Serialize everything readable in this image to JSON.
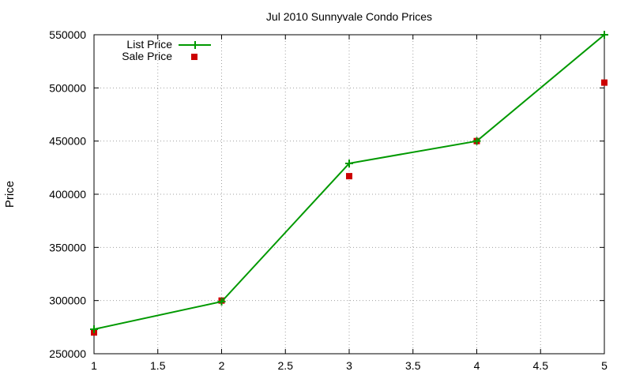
{
  "chart_data": {
    "type": "line",
    "title": "Jul 2010 Sunnyvale Condo Prices",
    "xlabel": "",
    "ylabel": "Price",
    "xlim": [
      1,
      5
    ],
    "ylim": [
      250000,
      550000
    ],
    "xticks": [
      1,
      1.5,
      2,
      2.5,
      3,
      3.5,
      4,
      4.5,
      5
    ],
    "xtick_labels": [
      "1",
      "1.5",
      "2",
      "2.5",
      "3",
      "3.5",
      "4",
      "4.5",
      "5"
    ],
    "yticks": [
      250000,
      300000,
      350000,
      400000,
      450000,
      500000,
      550000
    ],
    "ytick_labels": [
      "250000",
      "300000",
      "350000",
      "400000",
      "450000",
      "500000",
      "550000"
    ],
    "grid": true,
    "legend_position": "top-left",
    "series": [
      {
        "name": "List Price",
        "style": "line-with-plus-markers",
        "color": "#009900",
        "x": [
          1,
          2,
          3,
          4,
          5
        ],
        "y": [
          273000,
          299000,
          429000,
          450000,
          550000
        ]
      },
      {
        "name": "Sale Price",
        "style": "square-markers",
        "color": "#cc0000",
        "x": [
          1,
          2,
          3,
          4,
          5
        ],
        "y": [
          270000,
          300000,
          417000,
          450000,
          505000
        ]
      }
    ]
  }
}
